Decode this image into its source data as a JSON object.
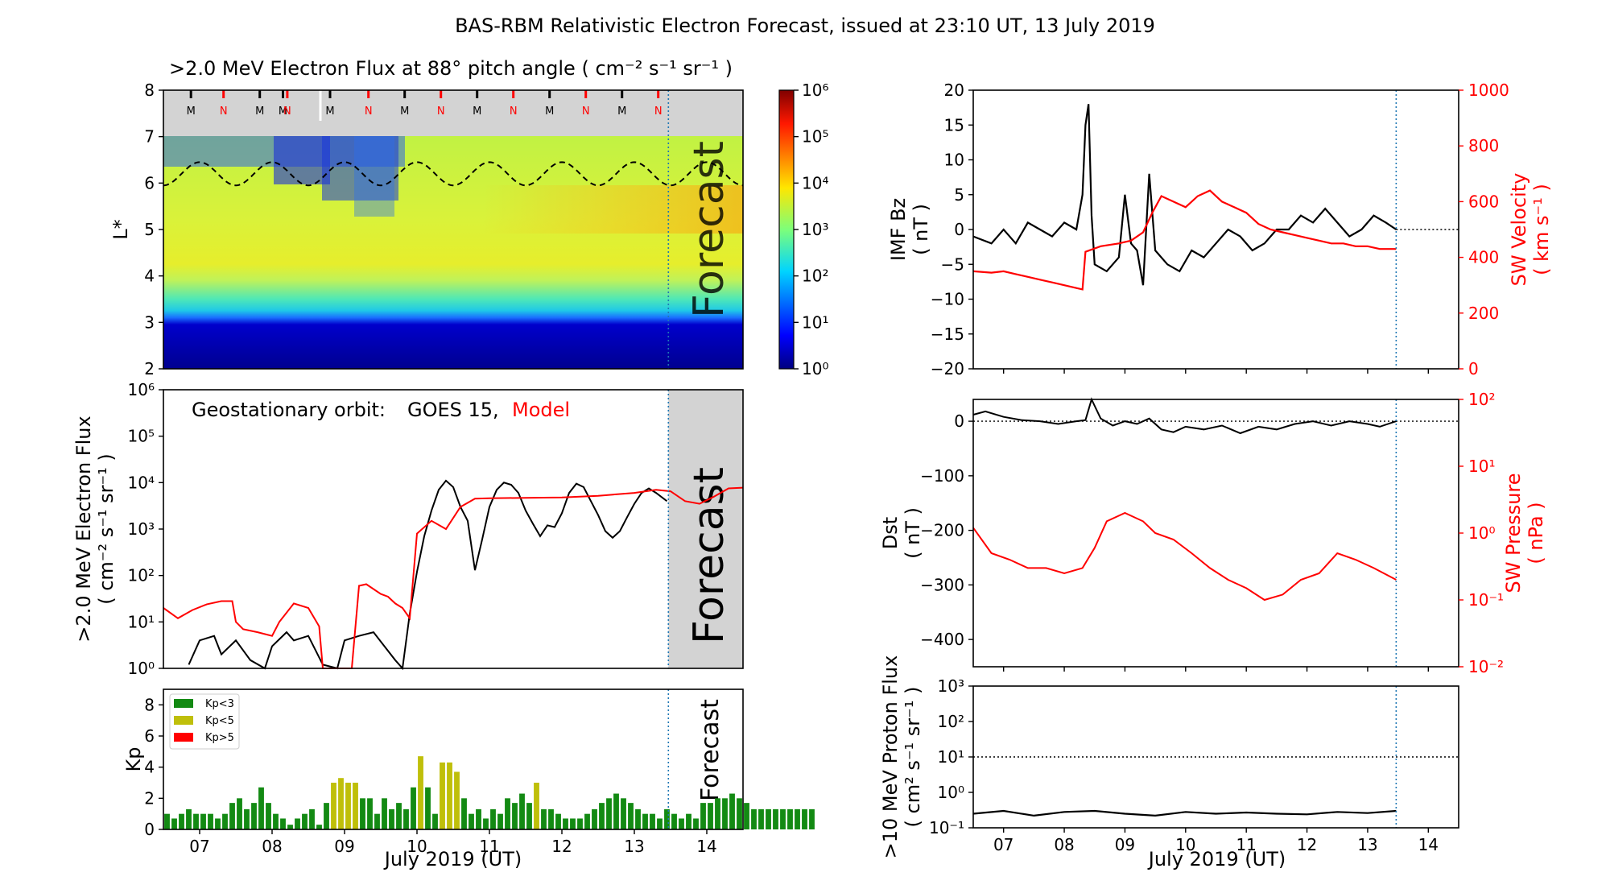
{
  "page_title": "BAS-RBM Relativistic Electron Forecast, issued at 23:10 UT, 13 July 2019",
  "colors": {
    "black": "#000000",
    "red": "#ff0000",
    "forecast_line": "#1f77b4",
    "forecast_shade": "#d3d3d3",
    "kp_lt3": "#138a13",
    "kp_lt5": "#bfbf0a",
    "kp_gt5": "#ff0000"
  },
  "common": {
    "x_range_days": [
      6.5,
      14.5
    ],
    "x_ticks": [
      7,
      8,
      9,
      10,
      11,
      12,
      13,
      14
    ],
    "x_ticklabels": [
      "07",
      "08",
      "09",
      "10",
      "11",
      "12",
      "13",
      "14"
    ],
    "xlabel": "July 2019 (UT)",
    "forecast_time": 13.47
  },
  "chart_data": [
    {
      "id": "lstar_heatmap",
      "type": "heatmap",
      "title": ">2.0 MeV Electron Flux at 88° pitch angle ( cm⁻² s⁻¹ sr⁻¹ )",
      "ylabel": "L*",
      "ylim": [
        2,
        8
      ],
      "yticks": [
        2,
        3,
        4,
        5,
        6,
        7,
        8
      ],
      "colorbar_range": [
        1,
        1000000
      ],
      "colorbar_ticklabels": [
        "10⁰",
        "10¹",
        "10²",
        "10³",
        "10⁴",
        "10⁵",
        "10⁶"
      ],
      "overlay_text": "Forecast",
      "orbit_markers": [
        {
          "t": 6.88,
          "label": "M",
          "color": "#000000"
        },
        {
          "t": 7.33,
          "label": "N",
          "color": "#ff0000"
        },
        {
          "t": 7.83,
          "label": "M",
          "color": "#000000"
        },
        {
          "t": 8.15,
          "label": "M",
          "color": "#000000"
        },
        {
          "t": 8.21,
          "label": "N",
          "color": "#ff0000"
        },
        {
          "t": 8.8,
          "label": "M",
          "color": "#000000"
        },
        {
          "t": 9.33,
          "label": "N",
          "color": "#ff0000"
        },
        {
          "t": 9.83,
          "label": "M",
          "color": "#000000"
        },
        {
          "t": 10.33,
          "label": "N",
          "color": "#ff0000"
        },
        {
          "t": 10.83,
          "label": "M",
          "color": "#000000"
        },
        {
          "t": 11.33,
          "label": "N",
          "color": "#ff0000"
        },
        {
          "t": 11.83,
          "label": "M",
          "color": "#000000"
        },
        {
          "t": 12.33,
          "label": "N",
          "color": "#ff0000"
        },
        {
          "t": 12.83,
          "label": "M",
          "color": "#000000"
        },
        {
          "t": 13.33,
          "label": "N",
          "color": "#ff0000"
        }
      ],
      "series": [
        {
          "name": "",
          "description": "dashed black L* of geostationary orbit oscillating 5.95–6.45 daily"
        }
      ]
    },
    {
      "id": "geo_flux",
      "type": "line",
      "title": "",
      "annotation_label": "Geostationary orbit:",
      "ylabel": ">2.0 MeV Electron Flux ( cm⁻² s⁻¹ sr⁻¹ )",
      "yscale": "log",
      "ylim": [
        1,
        1000000
      ],
      "ytick_labels": [
        "10⁰",
        "10¹",
        "10²",
        "10³",
        "10⁴",
        "10⁵",
        "10⁶"
      ],
      "overlay_text": "Forecast",
      "series": [
        {
          "name": "GOES 15",
          "color": "#000000",
          "x": [
            6.85,
            7.0,
            7.2,
            7.3,
            7.5,
            7.7,
            7.9,
            8.0,
            8.2,
            8.3,
            8.5,
            8.7,
            8.9,
            9.0,
            9.2,
            9.4,
            9.55,
            9.7,
            9.8,
            9.9,
            10.0,
            10.1,
            10.2,
            10.3,
            10.4,
            10.5,
            10.6,
            10.7,
            10.8,
            10.9,
            11.0,
            11.1,
            11.2,
            11.3,
            11.4,
            11.5,
            11.6,
            11.7,
            11.8,
            11.9,
            12.0,
            12.1,
            12.2,
            12.3,
            12.4,
            12.5,
            12.6,
            12.7,
            12.8,
            12.9,
            13.0,
            13.1,
            13.2,
            13.3,
            13.45
          ],
          "y": [
            1.2,
            4,
            5,
            2,
            4,
            1.5,
            1,
            3,
            6,
            4,
            5,
            1.2,
            1,
            4,
            5,
            6,
            3,
            1.5,
            1,
            15,
            120,
            700,
            2500,
            7000,
            11000,
            8000,
            3000,
            1500,
            130,
            600,
            3000,
            7000,
            10000,
            9000,
            6000,
            2500,
            1300,
            700,
            1200,
            1100,
            2200,
            6000,
            9500,
            8000,
            4000,
            2000,
            900,
            650,
            900,
            1800,
            3500,
            6000,
            7500,
            6000,
            4000
          ]
        },
        {
          "name": "Model",
          "color": "#ff0000",
          "x": [
            6.5,
            6.7,
            6.9,
            7.1,
            7.3,
            7.45,
            7.5,
            7.6,
            7.8,
            8.0,
            8.1,
            8.3,
            8.5,
            8.65,
            8.7,
            9.1,
            9.2,
            9.3,
            9.5,
            9.6,
            9.7,
            9.8,
            9.9,
            10.0,
            10.2,
            10.4,
            10.6,
            10.8,
            11.0,
            11.5,
            12.0,
            12.5,
            13.0,
            13.3,
            13.5,
            13.7,
            13.9,
            14.1,
            14.3,
            14.5
          ],
          "y": [
            20,
            12,
            18,
            24,
            28,
            28,
            10,
            7,
            6,
            5,
            10,
            25,
            20,
            8,
            1,
            1,
            60,
            65,
            40,
            35,
            25,
            20,
            12,
            800,
            1500,
            1000,
            3000,
            4500,
            4600,
            4700,
            4800,
            5200,
            6000,
            7000,
            6500,
            4000,
            3500,
            5000,
            7500,
            7800
          ]
        }
      ]
    },
    {
      "id": "kp_bars",
      "type": "bar",
      "ylabel": "Kp",
      "ylim": [
        0,
        9
      ],
      "yticks": [
        0,
        2,
        4,
        6,
        8
      ],
      "overlay_text": "Forecast",
      "legend": [
        {
          "label": "Kp<3",
          "color": "#138a13"
        },
        {
          "label": "Kp<5",
          "color": "#bfbf0a"
        },
        {
          "label": "Kp>5",
          "color": "#ff0000"
        }
      ],
      "bar_width_days": 0.1,
      "values": [
        1.0,
        0.7,
        1.0,
        1.3,
        1.0,
        1.0,
        1.0,
        0.7,
        1.0,
        1.7,
        2.0,
        1.3,
        1.7,
        2.7,
        1.7,
        1.0,
        0.7,
        0.3,
        0.7,
        1.0,
        1.3,
        0.3,
        1.7,
        3.0,
        3.3,
        3.0,
        3.0,
        2.0,
        2.0,
        1.0,
        2.0,
        1.3,
        1.7,
        1.3,
        2.7,
        4.7,
        2.7,
        1.0,
        4.3,
        4.3,
        3.7,
        2.0,
        1.0,
        1.3,
        0.7,
        1.3,
        1.0,
        2.0,
        1.7,
        2.3,
        1.7,
        3.0,
        1.3,
        1.3,
        1.0,
        0.7,
        0.7,
        0.7,
        1.0,
        1.3,
        1.7,
        2.0,
        2.3,
        2.0,
        1.7,
        1.3,
        1.0,
        1.0,
        0.7,
        1.3,
        1.0,
        0.7,
        1.0,
        0.7,
        1.7,
        1.7,
        2.0,
        2.0,
        2.3,
        2.0,
        1.7,
        1.3,
        1.3,
        1.3,
        1.3,
        1.3,
        1.3,
        1.3,
        1.3,
        1.3
      ]
    },
    {
      "id": "imf_bz",
      "type": "line",
      "ylabel": "IMF Bz ( nT )",
      "ylim": [
        -20,
        20
      ],
      "yticks": [
        -20,
        -15,
        -10,
        -5,
        0,
        5,
        10,
        15,
        20
      ],
      "y2label": "SW Velocity ( km s⁻¹ )",
      "y2lim": [
        0,
        1000
      ],
      "y2ticks": [
        0,
        200,
        400,
        600,
        800,
        1000
      ],
      "series": [
        {
          "name": "",
          "color": "#000000",
          "axis": "left",
          "x": [
            6.5,
            6.8,
            7.0,
            7.2,
            7.4,
            7.6,
            7.8,
            8.0,
            8.2,
            8.3,
            8.35,
            8.4,
            8.45,
            8.5,
            8.7,
            8.9,
            9.0,
            9.1,
            9.2,
            9.3,
            9.4,
            9.5,
            9.7,
            9.9,
            10.1,
            10.3,
            10.5,
            10.7,
            10.9,
            11.1,
            11.3,
            11.5,
            11.7,
            11.9,
            12.1,
            12.3,
            12.5,
            12.7,
            12.9,
            13.1,
            13.3,
            13.47
          ],
          "y": [
            -1,
            -2,
            0,
            -2,
            1,
            0,
            -1,
            1,
            0,
            5,
            15,
            18,
            2,
            -5,
            -6,
            -4,
            5,
            -2,
            -3,
            -8,
            8,
            -3,
            -5,
            -6,
            -3,
            -4,
            -2,
            0,
            -1,
            -3,
            -2,
            0,
            0,
            2,
            1,
            3,
            1,
            -1,
            0,
            2,
            1,
            0
          ]
        },
        {
          "name": "",
          "color": "#ff0000",
          "axis": "right",
          "x": [
            6.5,
            6.8,
            7.0,
            7.2,
            7.4,
            7.6,
            7.8,
            8.0,
            8.2,
            8.3,
            8.35,
            8.6,
            8.9,
            9.1,
            9.3,
            9.45,
            9.6,
            9.8,
            10.0,
            10.2,
            10.4,
            10.6,
            10.8,
            11.0,
            11.2,
            11.4,
            11.6,
            11.8,
            12.0,
            12.2,
            12.4,
            12.6,
            12.8,
            13.0,
            13.2,
            13.47
          ],
          "y": [
            350,
            345,
            350,
            340,
            330,
            320,
            310,
            300,
            290,
            285,
            420,
            440,
            450,
            460,
            490,
            560,
            620,
            600,
            580,
            620,
            640,
            600,
            580,
            560,
            520,
            500,
            490,
            480,
            470,
            460,
            450,
            450,
            440,
            440,
            430,
            430
          ]
        }
      ]
    },
    {
      "id": "dst",
      "type": "line",
      "ylabel": "Dst ( nT )",
      "ylim": [
        -450,
        40
      ],
      "yticks": [
        -400,
        -300,
        -200,
        -100,
        0
      ],
      "y2label": "SW Pressure ( nPa )",
      "y2scale": "log",
      "y2lim": [
        0.01,
        100
      ],
      "y2ticklabels": [
        "10⁻²",
        "10⁻¹",
        "10⁰",
        "10¹",
        "10²"
      ],
      "series": [
        {
          "name": "",
          "color": "#000000",
          "axis": "left",
          "x": [
            6.5,
            6.7,
            7.0,
            7.3,
            7.6,
            7.9,
            8.2,
            8.35,
            8.45,
            8.6,
            8.8,
            9.0,
            9.2,
            9.4,
            9.6,
            9.8,
            10.0,
            10.3,
            10.6,
            10.9,
            11.2,
            11.5,
            11.8,
            12.1,
            12.4,
            12.7,
            13.0,
            13.2,
            13.47
          ],
          "y": [
            12,
            18,
            8,
            2,
            0,
            -5,
            0,
            2,
            40,
            5,
            -8,
            0,
            -5,
            5,
            -15,
            -20,
            -10,
            -15,
            -8,
            -22,
            -10,
            -15,
            -5,
            0,
            -8,
            0,
            -5,
            -10,
            0
          ]
        },
        {
          "name": "",
          "color": "#ff0000",
          "axis": "right",
          "x": [
            6.5,
            6.8,
            7.1,
            7.4,
            7.7,
            8.0,
            8.3,
            8.5,
            8.7,
            9.0,
            9.3,
            9.5,
            9.8,
            10.1,
            10.4,
            10.7,
            11.0,
            11.3,
            11.6,
            11.9,
            12.2,
            12.5,
            12.8,
            13.1,
            13.47
          ],
          "y": [
            1.2,
            0.5,
            0.4,
            0.3,
            0.3,
            0.25,
            0.3,
            0.6,
            1.5,
            2.0,
            1.5,
            1.0,
            0.8,
            0.5,
            0.3,
            0.2,
            0.15,
            0.1,
            0.12,
            0.2,
            0.25,
            0.5,
            0.4,
            0.3,
            0.2
          ]
        }
      ]
    },
    {
      "id": "proton_flux",
      "type": "line",
      "ylabel": ">10 MeV Proton Flux ( cm² s⁻¹ sr⁻¹ )",
      "yscale": "log",
      "ylim": [
        0.1,
        1000
      ],
      "ytick_labels": [
        "10⁻¹",
        "10⁰",
        "10¹",
        "10²",
        "10³"
      ],
      "threshold": 10,
      "series": [
        {
          "name": "",
          "color": "#000000",
          "x": [
            6.5,
            7.0,
            7.5,
            8.0,
            8.5,
            9.0,
            9.5,
            10.0,
            10.5,
            11.0,
            11.5,
            12.0,
            12.5,
            13.0,
            13.47
          ],
          "y": [
            0.25,
            0.3,
            0.22,
            0.28,
            0.3,
            0.25,
            0.22,
            0.28,
            0.25,
            0.27,
            0.25,
            0.24,
            0.28,
            0.26,
            0.3
          ]
        }
      ]
    }
  ]
}
